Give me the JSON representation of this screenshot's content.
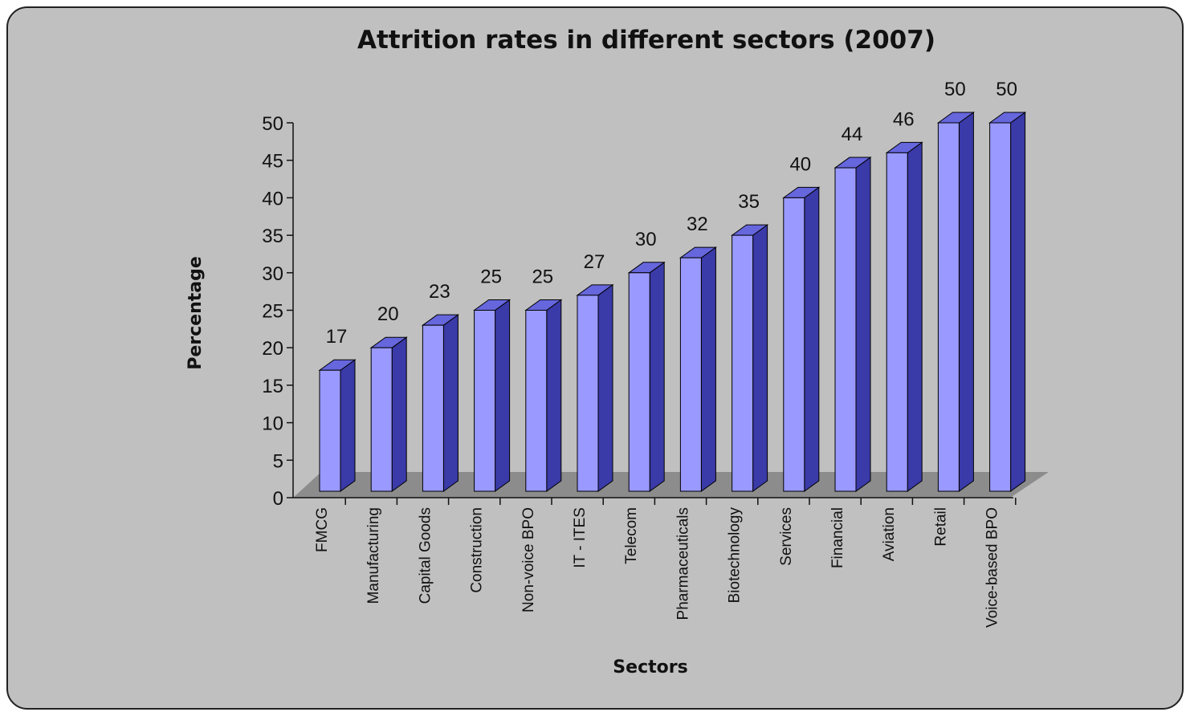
{
  "chart_data": {
    "type": "bar",
    "title": "Attrition rates in different sectors (2007)",
    "xlabel": "Sectors",
    "ylabel": "Percentage",
    "categories": [
      "FMCG",
      "Manufacturing",
      "Capital Goods",
      "Construction",
      "Non-voice BPO",
      "IT - ITES",
      "Telecom",
      "Pharmaceuticals",
      "Biotechnology",
      "Services",
      "Financial",
      "Aviation",
      "Retail",
      "Voice-based BPO"
    ],
    "values": [
      17,
      20,
      23,
      25,
      25,
      27,
      30,
      32,
      35,
      40,
      44,
      46,
      50,
      50
    ],
    "ylim": [
      0,
      50
    ],
    "yticks": [
      "0",
      "5",
      "10",
      "15",
      "20",
      "25",
      "30",
      "35",
      "40",
      "45",
      "50"
    ],
    "grid": false,
    "legend": "none",
    "colors": {
      "bar_front": "#9999ff",
      "bar_side": "#3a3aa8",
      "bar_top": "#6666dd",
      "floor": "#8c8c8c",
      "background": "#c0c0c0"
    }
  }
}
